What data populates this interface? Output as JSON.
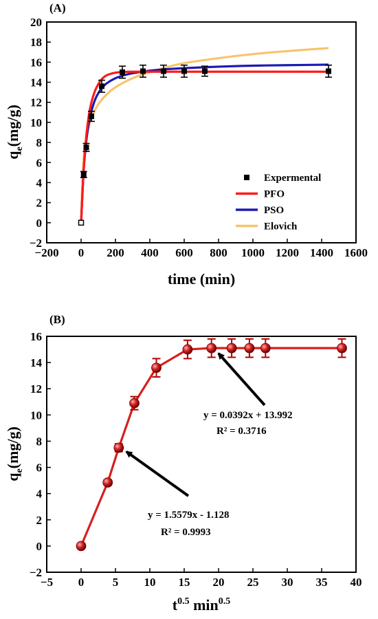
{
  "chart_data": [
    {
      "panel": "(A)",
      "type": "scatter",
      "xlabel": "time (min)",
      "ylabel_main": "q",
      "ylabel_sub": "e",
      "ylabel_rest": "(mg/g)",
      "xlim": [
        -200,
        1600
      ],
      "ylim": [
        -2,
        20
      ],
      "xticks": [
        -200,
        0,
        200,
        400,
        600,
        800,
        1000,
        1200,
        1400,
        1600
      ],
      "yticks": [
        -2,
        0,
        2,
        4,
        6,
        8,
        10,
        12,
        14,
        16,
        18,
        20
      ],
      "xtick_labels": [
        "−200",
        "0",
        "200",
        "400",
        "600",
        "800",
        "1000",
        "1200",
        "1400",
        "1600"
      ],
      "ytick_labels": [
        "−2",
        "0",
        "2",
        "4",
        "6",
        "8",
        "10",
        "12",
        "14",
        "16",
        "18",
        "20"
      ],
      "series": [
        {
          "name": "Expermental",
          "kind": "points",
          "color": "#000000",
          "x": [
            0,
            15,
            30,
            60,
            120,
            240,
            360,
            480,
            600,
            720,
            1440
          ],
          "y": [
            0,
            4.8,
            7.5,
            10.6,
            13.6,
            15.0,
            15.1,
            15.1,
            15.1,
            15.1,
            15.1
          ],
          "err": [
            0,
            0.3,
            0.4,
            0.5,
            0.6,
            0.6,
            0.6,
            0.6,
            0.6,
            0.5,
            0.6
          ]
        },
        {
          "name": "PFO",
          "kind": "curve",
          "color": "#ff1a1a",
          "x": [
            0,
            15,
            30,
            45,
            60,
            80,
            100,
            120,
            150,
            200,
            250,
            300,
            400,
            600,
            800,
            1000,
            1200,
            1440
          ],
          "y": [
            0,
            5.3,
            8.6,
            10.7,
            12.0,
            13.1,
            13.8,
            14.3,
            14.7,
            14.95,
            15.02,
            15.05,
            15.05,
            15.05,
            15.05,
            15.05,
            15.05,
            15.05
          ]
        },
        {
          "name": "PSO",
          "kind": "curve",
          "color": "#1a1ab3",
          "x": [
            0,
            15,
            30,
            45,
            60,
            80,
            100,
            120,
            150,
            200,
            250,
            300,
            400,
            500,
            600,
            800,
            1000,
            1200,
            1440
          ],
          "y": [
            0,
            5.2,
            8.1,
            9.9,
            11.1,
            12.2,
            12.9,
            13.4,
            13.9,
            14.4,
            14.7,
            14.9,
            15.15,
            15.3,
            15.4,
            15.55,
            15.65,
            15.7,
            15.75
          ]
        },
        {
          "name": "Elovich",
          "kind": "curve",
          "color": "#f7c46c",
          "x": [
            0,
            5,
            15,
            30,
            60,
            100,
            150,
            200,
            300,
            400,
            500,
            600,
            800,
            1000,
            1200,
            1440
          ],
          "y": [
            0,
            2.9,
            6.4,
            8.5,
            10.4,
            11.8,
            12.8,
            13.5,
            14.4,
            15.0,
            15.5,
            15.9,
            16.4,
            16.8,
            17.1,
            17.4
          ]
        }
      ],
      "legend_placement": "lower-right",
      "legend": [
        "Expermental",
        "PFO",
        "PSO",
        "Elovich"
      ]
    },
    {
      "panel": "(B)",
      "type": "line",
      "xlabel_base": "t",
      "xlabel_sup1": "0.5",
      "xlabel_mid": " min",
      "xlabel_sup2": "0.5",
      "ylabel_main": "q",
      "ylabel_sub": "e",
      "ylabel_rest": "(mg/g)",
      "xlim": [
        -5,
        40
      ],
      "ylim": [
        -2,
        16
      ],
      "xticks": [
        -5,
        0,
        5,
        10,
        15,
        20,
        25,
        30,
        35,
        40
      ],
      "yticks": [
        -2,
        0,
        2,
        4,
        6,
        8,
        10,
        12,
        14,
        16
      ],
      "xtick_labels": [
        "−5",
        "0",
        "5",
        "10",
        "15",
        "20",
        "25",
        "30",
        "35",
        "40"
      ],
      "ytick_labels": [
        "−2",
        "0",
        "2",
        "4",
        "6",
        "8",
        "10",
        "12",
        "14",
        "16"
      ],
      "series": [
        {
          "kind": "line-markers",
          "color": "#d61f1f",
          "x": [
            0,
            3.87,
            5.48,
            7.75,
            10.95,
            15.49,
            18.97,
            21.91,
            24.49,
            26.83,
            37.95
          ],
          "y": [
            0,
            4.85,
            7.5,
            10.9,
            13.6,
            15.0,
            15.1,
            15.1,
            15.1,
            15.1,
            15.1
          ],
          "err": [
            0,
            0.2,
            0.3,
            0.5,
            0.7,
            0.7,
            0.7,
            0.7,
            0.7,
            0.7,
            0.7
          ]
        }
      ],
      "annotations": [
        {
          "line1": "y = 0.0392x + 13.992",
          "line2": "R² = 0.3716",
          "target": [
            19.0,
            14.8
          ]
        },
        {
          "line1": "y = 1.5579x - 1.128",
          "line2": "R² = 0.9993",
          "target": [
            5.6,
            7.3
          ]
        }
      ]
    }
  ]
}
